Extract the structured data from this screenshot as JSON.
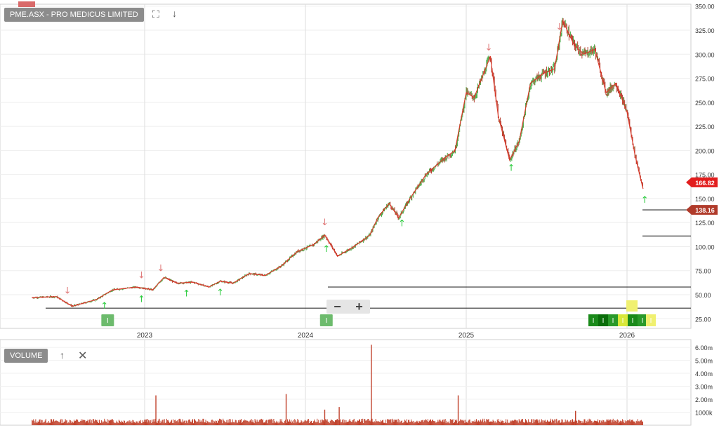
{
  "header": {
    "title": "PME.ASX - PRO MEDICUS LIMITED",
    "volume_label": "VOLUME"
  },
  "colors": {
    "price_line": "#d93a2b",
    "candle_up": "#3aa63a",
    "candle_down": "#b03020",
    "volume": "#c0402a",
    "price_tag": "#e21d1d",
    "level_tag": "#b03a2a",
    "arrow_up": "#2ecc40",
    "arrow_down": "#e07a7a"
  },
  "icons": {
    "expand": "expand-icon",
    "move_down": "arrow-down-icon",
    "move_up": "arrow-up-icon",
    "close": "close-icon",
    "zoom_out": "minus-icon",
    "zoom_in": "plus-icon"
  },
  "markers": {
    "info_badge": "I"
  },
  "chart_data": [
    {
      "type": "line",
      "title": "PME.ASX - PRO MEDICUS LIMITED",
      "x_ticks": [
        "2023",
        "2024",
        "2025",
        "2026"
      ],
      "y_ticks": [
        "25.00",
        "50.00",
        "75.00",
        "100.00",
        "125.00",
        "150.00",
        "175.00",
        "200.00",
        "225.00",
        "250.00",
        "275.00",
        "300.00",
        "325.00",
        "350.00"
      ],
      "ylim": [
        15,
        352
      ],
      "x": [
        2022.3,
        2022.45,
        2022.55,
        2022.7,
        2022.8,
        2022.95,
        2023.05,
        2023.12,
        2023.2,
        2023.3,
        2023.4,
        2023.47,
        2023.55,
        2023.65,
        2023.75,
        2023.85,
        2023.95,
        2024.05,
        2024.12,
        2024.2,
        2024.3,
        2024.4,
        2024.45,
        2024.52,
        2024.58,
        2024.65,
        2024.75,
        2024.85,
        2024.93,
        2025.0,
        2025.05,
        2025.15,
        2025.2,
        2025.27,
        2025.33,
        2025.4,
        2025.48,
        2025.55,
        2025.6,
        2025.67,
        2025.73,
        2025.8,
        2025.87,
        2025.93,
        2026.0,
        2026.05,
        2026.1
      ],
      "y": [
        47,
        48,
        38,
        45,
        55,
        58,
        55,
        68,
        62,
        63,
        58,
        64,
        62,
        72,
        70,
        80,
        95,
        102,
        112,
        90,
        100,
        112,
        130,
        145,
        130,
        150,
        175,
        190,
        200,
        260,
        255,
        298,
        235,
        190,
        210,
        270,
        280,
        285,
        335,
        310,
        300,
        305,
        260,
        270,
        240,
        195,
        160
      ],
      "last_close": "166.82",
      "level_label": "138.16",
      "horizontal_levels": [
        138.16,
        111,
        58,
        36
      ],
      "volume_ticks": [
        "1000k",
        "2.00m",
        "3.00m",
        "4.00m",
        "5.00m",
        "6.00m"
      ],
      "volume_spikes": [
        {
          "x": 2023.07,
          "value": 2.3
        },
        {
          "x": 2023.88,
          "value": 2.4
        },
        {
          "x": 2024.12,
          "value": 1.2
        },
        {
          "x": 2024.21,
          "value": 1.4
        },
        {
          "x": 2024.41,
          "value": 6.2
        },
        {
          "x": 2024.95,
          "value": 2.3
        },
        {
          "x": 2025.68,
          "value": 1.1
        }
      ],
      "up_arrows": [
        2022.75,
        2022.98,
        2023.26,
        2023.47,
        2024.13,
        2024.6,
        2025.28,
        2026.11
      ],
      "down_arrows": [
        2022.52,
        2022.98,
        2023.1,
        2024.12,
        2025.14,
        2025.58
      ]
    }
  ]
}
